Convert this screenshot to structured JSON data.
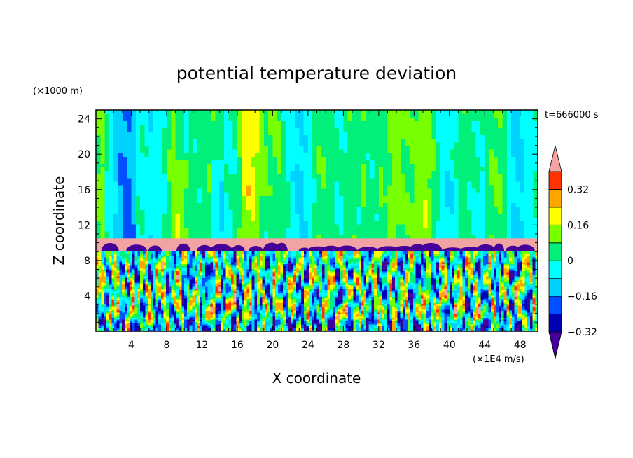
{
  "chart_data": {
    "type": "heatmap",
    "title": "potential temperature deviation",
    "xlabel": "X coordinate",
    "ylabel": "Z coordinate",
    "x_unit": "(×1E4 m/s)",
    "y_unit": "(×1000 m)",
    "time_label": "t=666000 s",
    "xlim": [
      0,
      50
    ],
    "ylim": [
      0,
      25
    ],
    "x_ticks": [
      4,
      8,
      12,
      16,
      20,
      24,
      28,
      32,
      36,
      40,
      44,
      48
    ],
    "y_ticks": [
      4,
      8,
      12,
      16,
      20,
      24
    ],
    "colorbar": {
      "levels": [
        -0.4,
        -0.32,
        -0.24,
        -0.16,
        -0.08,
        0,
        0.08,
        0.16,
        0.24,
        0.32,
        0.4
      ],
      "colors": [
        "#440099",
        "#0000b4",
        "#0050ff",
        "#00d2ff",
        "#00ffff",
        "#00f07a",
        "#78ff00",
        "#ffff00",
        "#ffa500",
        "#ff3200",
        "#f2a3a3"
      ],
      "extend": "both",
      "tick_labels": [
        {
          "value": 0.32,
          "label": "0.32"
        },
        {
          "value": 0.16,
          "label": "0.16"
        },
        {
          "value": 0,
          "label": "0"
        },
        {
          "value": -0.16,
          "label": "−0.16"
        },
        {
          "value": -0.32,
          "label": "−0.32"
        }
      ]
    },
    "bands": [
      {
        "z_range": [
          10.5,
          25
        ],
        "description_values": [
          -0.16,
          0.24
        ]
      },
      {
        "z_range": [
          9,
          10.5
        ],
        "description_values": [
          0.4
        ]
      },
      {
        "z_range": [
          0,
          9
        ],
        "description_values": [
          -0.4,
          0.4
        ]
      }
    ],
    "grid": false,
    "legend": "right"
  }
}
